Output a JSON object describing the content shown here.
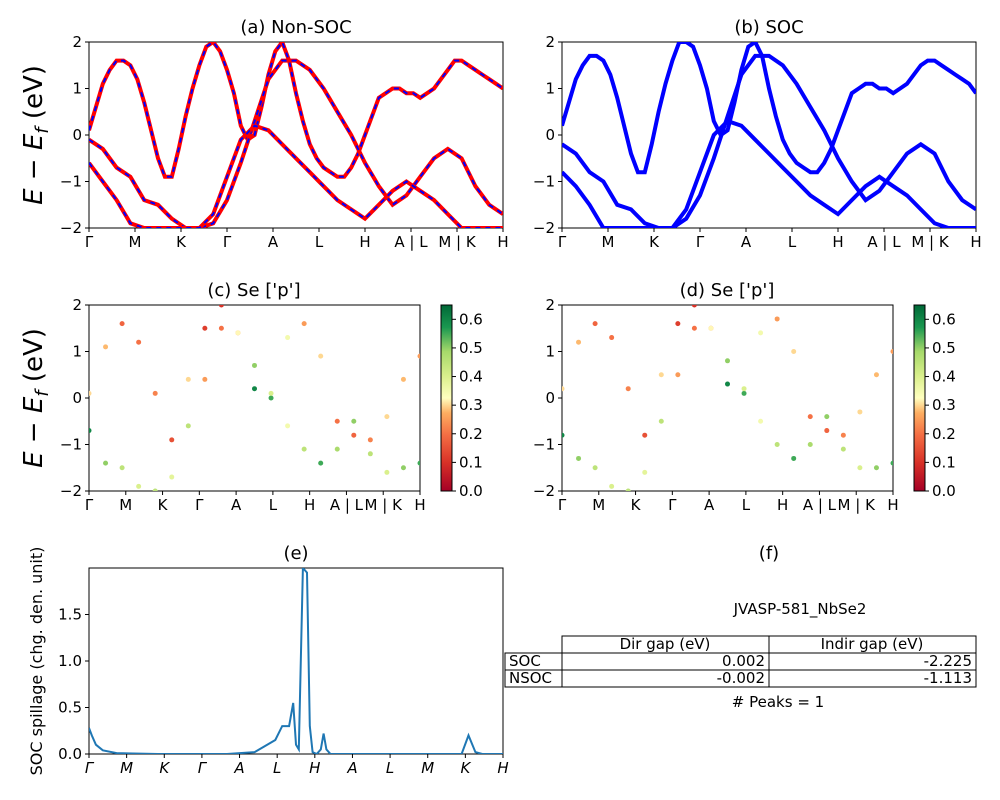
{
  "figure": {
    "ylabel_main": "E − E",
    "ylabel_sub": "f",
    "ylabel_unit": " (eV)"
  },
  "kpath_labels": [
    "Γ",
    "M",
    "K",
    "Γ",
    "A",
    "L",
    "H",
    "A | L",
    "M | K",
    "H"
  ],
  "panels": {
    "a": {
      "title": "(a) Non-SOC"
    },
    "b": {
      "title": "(b) SOC"
    },
    "c": {
      "title": "(c)  Se ['p']"
    },
    "d": {
      "title": "(d) Se ['p']"
    },
    "e": {
      "title": "(e)"
    },
    "f": {
      "title": "(f)"
    }
  },
  "colorbar": {
    "ticks": [
      "0.0",
      "0.1",
      "0.2",
      "0.3",
      "0.4",
      "0.5",
      "0.6"
    ]
  },
  "spillage_labels": [
    "Γ",
    "M",
    "K",
    "Γ",
    "A",
    "L",
    "H",
    "A",
    "L",
    "M",
    "K",
    "H"
  ],
  "table": {
    "title": "JVASP-581_NbSe2",
    "headers": [
      "",
      "Dir gap (eV)",
      "Indir gap (eV)"
    ],
    "rows": [
      [
        "SOC",
        "0.002",
        "-2.225"
      ],
      [
        "NSOC",
        "-0.002",
        "-1.113"
      ]
    ],
    "peaks": "# Peaks = 1"
  },
  "colors": {
    "nonsoc_line": "#ff0000",
    "nonsoc_dash": "#0000ff",
    "soc_line": "#0000ff",
    "spillage_line": "#1f77b4"
  },
  "chart_data": [
    {
      "type": "line",
      "title": "(a) Non-SOC",
      "ylabel": "E − E_f (eV)",
      "ylim": [
        -2,
        2
      ],
      "yticks": [
        -2,
        -1,
        0,
        1,
        2
      ],
      "x_ticks": [
        "Γ",
        "M",
        "K",
        "Γ",
        "A",
        "L",
        "H",
        "A | L",
        "M | K",
        "H"
      ],
      "series": [
        {
          "x": [
            0,
            0.05,
            0.1,
            0.15,
            0.2,
            0.25,
            0.3,
            0.35,
            0.4,
            0.45,
            0.5,
            0.55,
            0.6,
            0.65,
            0.7,
            0.75,
            0.8,
            0.85,
            0.9,
            0.95,
            1.0,
            1.05,
            1.1,
            1.15,
            1.2,
            1.25,
            1.3,
            1.35,
            1.4,
            1.45,
            1.5,
            1.55,
            1.6,
            1.65,
            1.7,
            1.75,
            1.8,
            1.85,
            1.9,
            1.95,
            2.0,
            2.05,
            2.1,
            2.15,
            2.2,
            2.25,
            2.3,
            2.35,
            2.4,
            2.45,
            2.5,
            2.55,
            2.6,
            2.65,
            2.7,
            2.75,
            2.8,
            2.85,
            2.9,
            2.95,
            3.0
          ],
          "y": [
            0.1,
            0.6,
            1.1,
            1.4,
            1.6,
            1.6,
            1.5,
            1.2,
            0.7,
            0.1,
            -0.5,
            -0.9,
            -0.9,
            -0.3,
            0.4,
            1.0,
            1.5,
            1.9,
            2.0,
            1.8,
            1.4,
            0.9,
            0.2,
            -0.1,
            0.0,
            0.6,
            1.3,
            1.8,
            2.0,
            1.6,
            0.9,
            0.3,
            -0.2,
            -0.5,
            -0.7,
            -0.8,
            -0.9,
            -0.9,
            -0.7,
            -0.4,
            0.0,
            0.4,
            0.8,
            0.9,
            1.0,
            1.0,
            0.9,
            0.9,
            0.8,
            0.9,
            1.0,
            1.2,
            1.4,
            1.6,
            1.6,
            1.5,
            1.4,
            1.3,
            1.2,
            1.1,
            1.0
          ]
        },
        {
          "x": [
            0,
            0.1,
            0.2,
            0.3,
            0.4,
            0.5,
            0.6,
            0.7,
            0.8,
            0.9,
            1.0,
            1.1,
            1.2,
            1.3,
            1.4,
            1.5,
            1.6,
            1.7,
            1.8,
            1.9,
            2.0,
            2.1,
            2.2,
            2.3,
            2.4,
            2.5,
            2.6,
            2.7,
            2.8,
            2.9,
            3.0
          ],
          "y": [
            -0.1,
            -0.3,
            -0.7,
            -0.9,
            -1.4,
            -1.5,
            -1.8,
            -2.0,
            -2.0,
            -1.9,
            -1.4,
            -0.6,
            0.3,
            1.2,
            1.6,
            1.6,
            1.4,
            1.0,
            0.5,
            0.0,
            -0.6,
            -1.1,
            -1.5,
            -1.3,
            -0.9,
            -0.5,
            -0.3,
            -0.5,
            -1.1,
            -1.5,
            -1.7
          ]
        },
        {
          "x": [
            0,
            0.1,
            0.2,
            0.3,
            0.4,
            0.5,
            0.6,
            0.7,
            0.8,
            0.9,
            1.0,
            1.1,
            1.2,
            1.3,
            1.4,
            1.5,
            1.6,
            1.7,
            1.8,
            1.9,
            2.0,
            2.1,
            2.2,
            2.3,
            2.4,
            2.5,
            2.6,
            2.7,
            2.8,
            2.9,
            3.0
          ],
          "y": [
            -0.6,
            -1.0,
            -1.4,
            -1.9,
            -2.0,
            -2.0,
            -2.0,
            -2.0,
            -2.0,
            -1.7,
            -0.9,
            -0.1,
            0.2,
            0.1,
            -0.2,
            -0.5,
            -0.8,
            -1.1,
            -1.4,
            -1.6,
            -1.8,
            -1.5,
            -1.2,
            -1.0,
            -1.2,
            -1.4,
            -1.7,
            -2.0,
            -2.0,
            -2.0,
            -2.0
          ]
        }
      ]
    },
    {
      "type": "line",
      "title": "(b) SOC",
      "ylim": [
        -2,
        2
      ],
      "yticks": [
        -2,
        -1,
        0,
        1,
        2
      ],
      "x_ticks": [
        "Γ",
        "M",
        "K",
        "Γ",
        "A",
        "L",
        "H",
        "A | L",
        "M | K",
        "H"
      ],
      "series": [
        {
          "x": [
            0,
            0.05,
            0.1,
            0.15,
            0.2,
            0.25,
            0.3,
            0.35,
            0.4,
            0.45,
            0.5,
            0.55,
            0.6,
            0.65,
            0.7,
            0.75,
            0.8,
            0.85,
            0.9,
            0.95,
            1.0,
            1.05,
            1.1,
            1.15,
            1.2,
            1.25,
            1.3,
            1.35,
            1.4,
            1.45,
            1.5,
            1.55,
            1.6,
            1.65,
            1.7,
            1.75,
            1.8,
            1.85,
            1.9,
            1.95,
            2.0,
            2.05,
            2.1,
            2.15,
            2.2,
            2.25,
            2.3,
            2.35,
            2.4,
            2.45,
            2.5,
            2.55,
            2.6,
            2.65,
            2.7,
            2.75,
            2.8,
            2.85,
            2.9,
            2.95,
            3.0
          ],
          "y": [
            0.2,
            0.7,
            1.2,
            1.5,
            1.7,
            1.7,
            1.6,
            1.3,
            0.8,
            0.2,
            -0.4,
            -0.8,
            -0.8,
            -0.2,
            0.5,
            1.1,
            1.6,
            2.0,
            2.0,
            1.9,
            1.5,
            1.0,
            0.3,
            0.0,
            0.1,
            0.7,
            1.4,
            1.9,
            2.0,
            1.7,
            1.0,
            0.4,
            -0.1,
            -0.4,
            -0.6,
            -0.7,
            -0.8,
            -0.8,
            -0.6,
            -0.3,
            0.1,
            0.5,
            0.9,
            1.0,
            1.1,
            1.1,
            1.0,
            1.0,
            0.9,
            1.0,
            1.1,
            1.3,
            1.5,
            1.6,
            1.6,
            1.5,
            1.4,
            1.3,
            1.2,
            1.1,
            0.9
          ]
        },
        {
          "x": [
            0,
            0.1,
            0.2,
            0.3,
            0.4,
            0.5,
            0.6,
            0.7,
            0.8,
            0.9,
            1.0,
            1.1,
            1.2,
            1.3,
            1.4,
            1.5,
            1.6,
            1.7,
            1.8,
            1.9,
            2.0,
            2.1,
            2.2,
            2.3,
            2.4,
            2.5,
            2.6,
            2.7,
            2.8,
            2.9,
            3.0
          ],
          "y": [
            -0.2,
            -0.4,
            -0.8,
            -1.0,
            -1.5,
            -1.6,
            -1.9,
            -2.0,
            -2.0,
            -1.8,
            -1.3,
            -0.5,
            0.4,
            1.3,
            1.7,
            1.7,
            1.5,
            1.1,
            0.6,
            0.1,
            -0.5,
            -1.0,
            -1.4,
            -1.2,
            -0.8,
            -0.4,
            -0.2,
            -0.4,
            -1.0,
            -1.4,
            -1.6
          ]
        },
        {
          "x": [
            0,
            0.1,
            0.2,
            0.3,
            0.4,
            0.5,
            0.6,
            0.7,
            0.8,
            0.9,
            1.0,
            1.1,
            1.2,
            1.3,
            1.4,
            1.5,
            1.6,
            1.7,
            1.8,
            1.9,
            2.0,
            2.1,
            2.2,
            2.3,
            2.4,
            2.5,
            2.6,
            2.7,
            2.8,
            2.9,
            3.0
          ],
          "y": [
            -0.8,
            -1.1,
            -1.5,
            -2.0,
            -2.0,
            -2.0,
            -2.0,
            -2.0,
            -2.0,
            -1.6,
            -0.8,
            0.0,
            0.3,
            0.2,
            -0.1,
            -0.4,
            -0.7,
            -1.0,
            -1.3,
            -1.5,
            -1.7,
            -1.4,
            -1.1,
            -0.9,
            -1.1,
            -1.3,
            -1.6,
            -1.9,
            -2.0,
            -2.0,
            -2.0
          ]
        }
      ]
    },
    {
      "type": "scatter",
      "title": "(c)  Se ['p']",
      "ylim": [
        -2,
        2
      ],
      "colorbar_range": [
        0.0,
        0.65
      ],
      "x_ticks": [
        "Γ",
        "M",
        "K",
        "Γ",
        "A",
        "L",
        "H",
        "A | L",
        "M | K",
        "H"
      ],
      "series": [
        {
          "x": [
            0,
            0.15,
            0.3,
            0.45,
            0.6,
            0.75,
            0.9,
            1.05,
            1.2,
            1.35,
            1.5,
            1.65,
            1.8,
            1.95,
            2.1,
            2.25,
            2.4,
            2.55,
            2.7,
            2.85,
            3.0
          ],
          "y": [
            0.1,
            1.1,
            1.6,
            1.2,
            0.1,
            -0.9,
            0.4,
            1.5,
            2.0,
            1.4,
            0.2,
            0.0,
            1.3,
            1.6,
            0.9,
            -0.5,
            -0.8,
            -0.9,
            -0.4,
            0.4,
            0.9
          ],
          "w": [
            0.3,
            0.28,
            0.18,
            0.2,
            0.22,
            0.15,
            0.3,
            0.12,
            0.1,
            0.25,
            0.6,
            0.55,
            0.35,
            0.25,
            0.3,
            0.2,
            0.18,
            0.22,
            0.3,
            0.28,
            0.25
          ]
        },
        {
          "x": [
            0,
            0.15,
            0.3,
            0.45,
            0.6,
            0.75,
            0.9,
            1.05,
            1.2,
            1.35,
            1.5,
            1.65,
            1.8,
            1.95,
            2.1,
            2.25,
            2.4,
            2.55,
            2.7,
            2.85,
            3.0
          ],
          "y": [
            -0.7,
            -1.4,
            -1.5,
            -1.9,
            -2.0,
            -1.7,
            -0.6,
            0.4,
            1.5,
            1.4,
            0.7,
            0.1,
            -0.6,
            -1.1,
            -1.4,
            -1.1,
            -0.5,
            -1.2,
            -1.6,
            -1.5,
            -1.4
          ],
          "w": [
            0.6,
            0.5,
            0.45,
            0.4,
            0.45,
            0.38,
            0.45,
            0.25,
            0.2,
            0.32,
            0.5,
            0.4,
            0.35,
            0.45,
            0.55,
            0.48,
            0.5,
            0.45,
            0.4,
            0.5,
            0.55
          ]
        }
      ]
    },
    {
      "type": "scatter",
      "title": "(d) Se ['p']",
      "ylim": [
        -2,
        2
      ],
      "colorbar_range": [
        0.0,
        0.65
      ],
      "x_ticks": [
        "Γ",
        "M",
        "K",
        "Γ",
        "A",
        "L",
        "H",
        "A | L",
        "M | K",
        "H"
      ],
      "series": [
        {
          "x": [
            0,
            0.15,
            0.3,
            0.45,
            0.6,
            0.75,
            0.9,
            1.05,
            1.2,
            1.35,
            1.5,
            1.65,
            1.8,
            1.95,
            2.1,
            2.25,
            2.4,
            2.55,
            2.7,
            2.85,
            3.0
          ],
          "y": [
            0.2,
            1.2,
            1.6,
            1.3,
            0.2,
            -0.8,
            0.5,
            1.6,
            2.0,
            1.5,
            0.3,
            0.1,
            1.4,
            1.7,
            1.0,
            -0.4,
            -0.7,
            -0.8,
            -0.3,
            0.5,
            1.0
          ],
          "w": [
            0.3,
            0.28,
            0.18,
            0.2,
            0.22,
            0.15,
            0.3,
            0.12,
            0.1,
            0.25,
            0.6,
            0.55,
            0.35,
            0.25,
            0.3,
            0.2,
            0.18,
            0.22,
            0.3,
            0.28,
            0.25
          ]
        },
        {
          "x": [
            0,
            0.15,
            0.3,
            0.45,
            0.6,
            0.75,
            0.9,
            1.05,
            1.2,
            1.35,
            1.5,
            1.65,
            1.8,
            1.95,
            2.1,
            2.25,
            2.4,
            2.55,
            2.7,
            2.85,
            3.0
          ],
          "y": [
            -0.8,
            -1.3,
            -1.5,
            -1.9,
            -2.0,
            -1.6,
            -0.5,
            0.5,
            1.5,
            1.5,
            0.8,
            0.2,
            -0.5,
            -1.0,
            -1.3,
            -1.0,
            -0.4,
            -1.1,
            -1.5,
            -1.5,
            -1.4
          ],
          "w": [
            0.6,
            0.5,
            0.45,
            0.4,
            0.45,
            0.38,
            0.45,
            0.25,
            0.2,
            0.32,
            0.5,
            0.4,
            0.35,
            0.45,
            0.55,
            0.48,
            0.5,
            0.45,
            0.4,
            0.5,
            0.55
          ]
        }
      ]
    },
    {
      "type": "line",
      "title": "(e)",
      "ylabel": "SOC spillage (chg. den. unit)",
      "ylim": [
        0,
        2.0
      ],
      "yticks": [
        0.0,
        0.5,
        1.0,
        1.5
      ],
      "x_ticks": [
        "Γ",
        "M",
        "K",
        "Γ",
        "A",
        "L",
        "H",
        "A",
        "L",
        "M",
        "K",
        "H"
      ],
      "series": [
        {
          "x": [
            0,
            0.02,
            0.05,
            0.1,
            0.2,
            0.5,
            0.8,
            1.0,
            1.2,
            1.35,
            1.4,
            1.45,
            1.48,
            1.5,
            1.52,
            1.55,
            1.58,
            1.6,
            1.62,
            1.65,
            1.68,
            1.7,
            1.72,
            1.75,
            1.8,
            1.85,
            1.9,
            2.0,
            2.2,
            2.5,
            2.7,
            2.75,
            2.8,
            2.85,
            2.9,
            3.0
          ],
          "y": [
            0.28,
            0.2,
            0.1,
            0.04,
            0.01,
            0.0,
            0.0,
            0.0,
            0.02,
            0.15,
            0.3,
            0.3,
            0.55,
            0.1,
            0.05,
            2.0,
            1.95,
            0.3,
            0.02,
            0.0,
            0.05,
            0.22,
            0.05,
            0.0,
            0.0,
            0.0,
            0.0,
            0.0,
            0.0,
            0.0,
            0.0,
            0.2,
            0.02,
            0.0,
            0.0,
            0.0
          ]
        }
      ]
    },
    {
      "type": "table",
      "title": "JVASP-581_NbSe2",
      "headers": [
        "",
        "Dir gap (eV)",
        "Indir gap (eV)"
      ],
      "rows": [
        [
          "SOC",
          "0.002",
          "-2.225"
        ],
        [
          "NSOC",
          "-0.002",
          "-1.113"
        ]
      ],
      "annotation": "# Peaks = 1"
    }
  ]
}
